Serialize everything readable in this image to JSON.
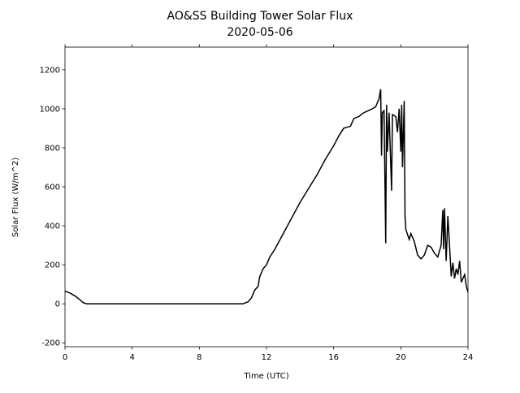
{
  "chart_data": {
    "type": "line",
    "title": "AO&SS Building Tower Solar Flux",
    "subtitle": "2020-05-06",
    "x_label": "Time (UTC)",
    "y_label": "Solar Flux (W/m^2)",
    "x": [
      0,
      0.3,
      0.6,
      0.9,
      1.1,
      1.3,
      10.6,
      10.9,
      11.1,
      11.3,
      11.5,
      11.6,
      11.8,
      12.0,
      12.2,
      12.5,
      13,
      13.5,
      14,
      14.5,
      15,
      15.5,
      16,
      16.3,
      16.6,
      17,
      17.2,
      17.5,
      17.8,
      18.2,
      18.5,
      18.7,
      18.8,
      18.85,
      18.9,
      19.0,
      19.1,
      19.15,
      19.2,
      19.3,
      19.45,
      19.5,
      19.7,
      19.8,
      19.9,
      20.0,
      20.05,
      20.1,
      20.2,
      20.25,
      20.3,
      20.5,
      20.6,
      20.8,
      21.0,
      21.2,
      21.4,
      21.6,
      21.8,
      22.0,
      22.2,
      22.4,
      22.5,
      22.55,
      22.6,
      22.7,
      22.8,
      22.9,
      23.0,
      23.1,
      23.2,
      23.3,
      23.4,
      23.5,
      23.6,
      23.8,
      23.9,
      24
    ],
    "series": [
      {
        "name": "Solar Flux",
        "color": "#000000",
        "values": [
          65,
          55,
          40,
          20,
          5,
          0,
          0,
          10,
          30,
          70,
          90,
          140,
          180,
          200,
          240,
          280,
          360,
          440,
          520,
          590,
          660,
          740,
          810,
          860,
          900,
          910,
          950,
          960,
          980,
          995,
          1010,
          1050,
          1100,
          760,
          980,
          990,
          310,
          1020,
          780,
          980,
          580,
          970,
          960,
          880,
          1000,
          780,
          1020,
          700,
          1040,
          450,
          380,
          330,
          360,
          320,
          250,
          230,
          250,
          300,
          290,
          260,
          240,
          300,
          480,
          280,
          490,
          220,
          450,
          300,
          140,
          210,
          130,
          180,
          150,
          220,
          110,
          150,
          90,
          60
        ]
      }
    ],
    "xlim": [
      0,
      24
    ],
    "xticks": [
      0,
      4,
      8,
      12,
      16,
      20,
      24
    ],
    "ylim": [
      -220,
      1316
    ],
    "yticks": [
      -200,
      0,
      200,
      400,
      600,
      800,
      1000,
      1200
    ]
  }
}
